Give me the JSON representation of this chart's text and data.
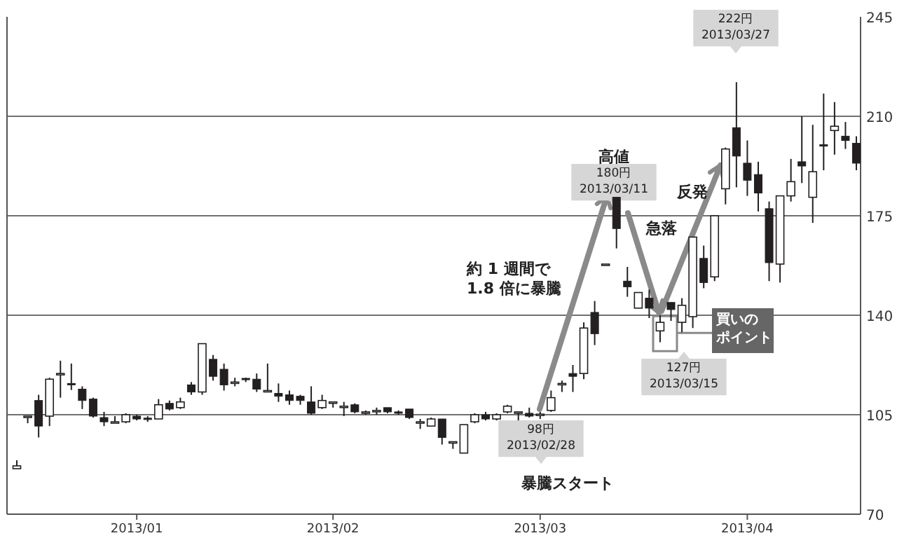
{
  "chart_data": {
    "type": "candlestick",
    "categories": [
      null,
      null,
      null,
      null,
      null,
      null,
      null,
      null,
      null,
      null,
      null,
      "2013/01",
      null,
      null,
      null,
      null,
      null,
      null,
      null,
      null,
      null,
      null,
      null,
      null,
      null,
      null,
      null,
      null,
      null,
      "2013/02",
      null,
      null,
      null,
      null,
      null,
      null,
      null,
      null,
      null,
      null,
      null,
      null,
      null,
      null,
      null,
      null,
      null,
      null,
      "2013/03",
      null,
      null,
      null,
      null,
      null,
      null,
      null,
      null,
      null,
      null,
      null,
      null,
      null,
      null,
      null,
      null,
      null,
      null,
      "2013/04",
      null,
      null,
      null,
      null,
      null,
      null,
      null,
      null,
      null,
      null
    ],
    "ohlc": [
      [
        86,
        89,
        86,
        87
      ],
      [
        104.5,
        104.5,
        102,
        104.5
      ],
      [
        110,
        112,
        97,
        101
      ],
      [
        104.5,
        118,
        101,
        117.5
      ],
      [
        119.5,
        124,
        111,
        119.5
      ],
      [
        116,
        123,
        113.7,
        115.8
      ],
      [
        114,
        115,
        107,
        110
      ],
      [
        110.5,
        111,
        104,
        104.5
      ],
      [
        104,
        106,
        101,
        102.5
      ],
      [
        102.5,
        104.5,
        102.5,
        102.5
      ],
      [
        102.5,
        105.5,
        102,
        105
      ],
      [
        104.5,
        105,
        103,
        103.5
      ],
      [
        103.8,
        104.5,
        102.5,
        103.5
      ],
      [
        103.5,
        110.5,
        103.5,
        108.5
      ],
      [
        109,
        110,
        106.5,
        107
      ],
      [
        107.5,
        111,
        107,
        109.5
      ],
      [
        115.5,
        116.5,
        112,
        113
      ],
      [
        113,
        130,
        112,
        130
      ],
      [
        124.5,
        126,
        117,
        118.5
      ],
      [
        121,
        123,
        113.5,
        115.5
      ],
      [
        116.5,
        118,
        115,
        116.5
      ],
      [
        117.8,
        118,
        116.5,
        117.5
      ],
      [
        117.5,
        119.5,
        113,
        114
      ],
      [
        113.5,
        123,
        113,
        113.5
      ],
      [
        112.5,
        116,
        109.5,
        111.5
      ],
      [
        112,
        113.5,
        108.5,
        110
      ],
      [
        111.5,
        112,
        108.5,
        110
      ],
      [
        109.5,
        115,
        105,
        105.5
      ],
      [
        107.5,
        112,
        107,
        110
      ],
      [
        109.5,
        109.5,
        107.5,
        109.5
      ],
      [
        108,
        109.5,
        104.5,
        108
      ],
      [
        108.5,
        109,
        105.5,
        106
      ],
      [
        106,
        106.5,
        105,
        106
      ],
      [
        106.5,
        107.5,
        105,
        106.5
      ],
      [
        107.5,
        107.5,
        105.5,
        106
      ],
      [
        106,
        106.5,
        105,
        105.5
      ],
      [
        107,
        107,
        103.5,
        104
      ],
      [
        102.5,
        103.5,
        100,
        102.5
      ],
      [
        101,
        104,
        101,
        103.5
      ],
      [
        103.5,
        103.5,
        94.5,
        97
      ],
      [
        95.5,
        95.5,
        93,
        95.5
      ],
      [
        91.5,
        101.5,
        91.5,
        101.5
      ],
      [
        102.5,
        105.5,
        102,
        105
      ],
      [
        105,
        106,
        103,
        103.5
      ],
      [
        103.5,
        105.5,
        103,
        105
      ],
      [
        106,
        108.5,
        105.5,
        108
      ],
      [
        106,
        106,
        103,
        106
      ],
      [
        105.5,
        107.5,
        104,
        104.5
      ],
      [
        105.2,
        106,
        103.5,
        105.2
      ],
      [
        106.5,
        113.5,
        106,
        111
      ],
      [
        116,
        117,
        113,
        116
      ],
      [
        119.5,
        122.5,
        113,
        118.5
      ],
      [
        119.5,
        137.5,
        117.5,
        135.5
      ],
      [
        141,
        145,
        129.5,
        133.5
      ],
      [
        158,
        158,
        158,
        158
      ],
      [
        181.5,
        181.5,
        163.5,
        170.5
      ],
      [
        152,
        157,
        146.5,
        150
      ],
      [
        142.5,
        148,
        142.5,
        148
      ],
      [
        146,
        149,
        139,
        142.5
      ],
      [
        134.5,
        140,
        130.5,
        137.5
      ],
      [
        144.5,
        144.5,
        138,
        142
      ],
      [
        137.5,
        146,
        134,
        143.5
      ],
      [
        139.5,
        167.5,
        135.5,
        167.5
      ],
      [
        160,
        164.5,
        149.5,
        151.5
      ],
      [
        153.5,
        175,
        152,
        175
      ],
      [
        184.5,
        199,
        179,
        198.5
      ],
      [
        206,
        222,
        185,
        196
      ],
      [
        193.5,
        201.5,
        182,
        187.5
      ],
      [
        189.5,
        194,
        176.5,
        183
      ],
      [
        177.5,
        180,
        152,
        158.5
      ],
      [
        158,
        182,
        151.5,
        182
      ],
      [
        182,
        195,
        180,
        187
      ],
      [
        194,
        210,
        186.5,
        192.5
      ],
      [
        181.5,
        207,
        172.5,
        190.5
      ],
      [
        200,
        218,
        191,
        199.5
      ],
      [
        205,
        215,
        196.5,
        206.5
      ],
      [
        203,
        208,
        198.5,
        201.5
      ],
      [
        200.5,
        203,
        191,
        193.5
      ]
    ],
    "ylim": [
      70,
      245
    ],
    "yticks": [
      70,
      105,
      140,
      175,
      210,
      245
    ],
    "grid": "y",
    "annotations": [
      "高値",
      {
        "text": "180円\n2013/03/11",
        "y": 181.5
      },
      "約 1 週間で\n1.8 倍に暴騰",
      {
        "text": "急落",
        "y": 139
      },
      "反発",
      "222円\n2013/03/27",
      "127円\n2013/03/15",
      {
        "text": "買いのポイント",
        "y": 133.8
      },
      "98円\n2013/02/28",
      "暴騰スタート"
    ]
  }
}
